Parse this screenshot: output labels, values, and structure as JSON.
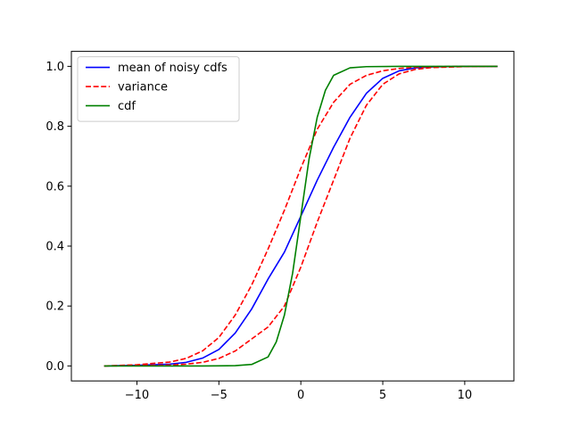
{
  "chart_data": {
    "type": "line",
    "title": "",
    "xlabel": "",
    "ylabel": "",
    "xlim": [
      -14,
      13
    ],
    "ylim": [
      -0.05,
      1.05
    ],
    "x_ticks": [
      -10,
      -5,
      0,
      5,
      10
    ],
    "x_tick_labels": [
      "−10",
      "−5",
      "0",
      "5",
      "10"
    ],
    "y_ticks": [
      0.0,
      0.2,
      0.4,
      0.6,
      0.8,
      1.0
    ],
    "y_tick_labels": [
      "0.0",
      "0.2",
      "0.4",
      "0.6",
      "0.8",
      "1.0"
    ],
    "grid": false,
    "legend_position": "upper-left",
    "series": [
      {
        "name": "mean of noisy cdfs",
        "color": "#0000ff",
        "dash": "solid",
        "x": [
          -12,
          -10,
          -8,
          -7,
          -6,
          -5,
          -4,
          -3,
          -2,
          -1,
          0,
          1,
          2,
          3,
          4,
          5,
          6,
          7,
          8,
          10,
          12
        ],
        "y": [
          0.0,
          0.002,
          0.006,
          0.012,
          0.026,
          0.055,
          0.11,
          0.19,
          0.29,
          0.38,
          0.5,
          0.62,
          0.73,
          0.83,
          0.91,
          0.96,
          0.985,
          0.995,
          0.998,
          1.0,
          1.0
        ]
      },
      {
        "name": "variance",
        "color": "#ff0000",
        "dash": "dashed",
        "x": [
          -12,
          -10,
          -8,
          -7,
          -6,
          -5,
          -4,
          -3,
          -2,
          -1,
          0,
          1,
          2,
          3,
          4,
          5,
          6,
          7,
          8,
          10,
          12
        ],
        "y": [
          0.0,
          0.004,
          0.013,
          0.025,
          0.05,
          0.095,
          0.17,
          0.27,
          0.39,
          0.52,
          0.66,
          0.79,
          0.88,
          0.94,
          0.97,
          0.985,
          0.993,
          0.997,
          0.999,
          1.0,
          1.0
        ]
      },
      {
        "name": "variance",
        "color": "#ff0000",
        "dash": "dashed",
        "legend": false,
        "x": [
          -12,
          -10,
          -8,
          -7,
          -6,
          -5,
          -4,
          -3,
          -2,
          -1,
          0,
          1,
          2,
          3,
          4,
          5,
          6,
          7,
          8,
          10,
          12
        ],
        "y": [
          0.0,
          0.001,
          0.003,
          0.006,
          0.012,
          0.025,
          0.05,
          0.09,
          0.13,
          0.2,
          0.33,
          0.48,
          0.62,
          0.76,
          0.87,
          0.94,
          0.975,
          0.99,
          0.996,
          0.999,
          1.0
        ]
      },
      {
        "name": "cdf",
        "color": "#008000",
        "dash": "solid",
        "x": [
          -12,
          -6,
          -4,
          -3,
          -2,
          -1.5,
          -1,
          -0.5,
          0,
          0.5,
          1,
          1.5,
          2,
          3,
          4,
          6,
          12
        ],
        "y": [
          0.0,
          0.0,
          0.001,
          0.005,
          0.03,
          0.08,
          0.17,
          0.31,
          0.5,
          0.69,
          0.83,
          0.92,
          0.97,
          0.995,
          0.999,
          1.0,
          1.0
        ]
      }
    ]
  }
}
